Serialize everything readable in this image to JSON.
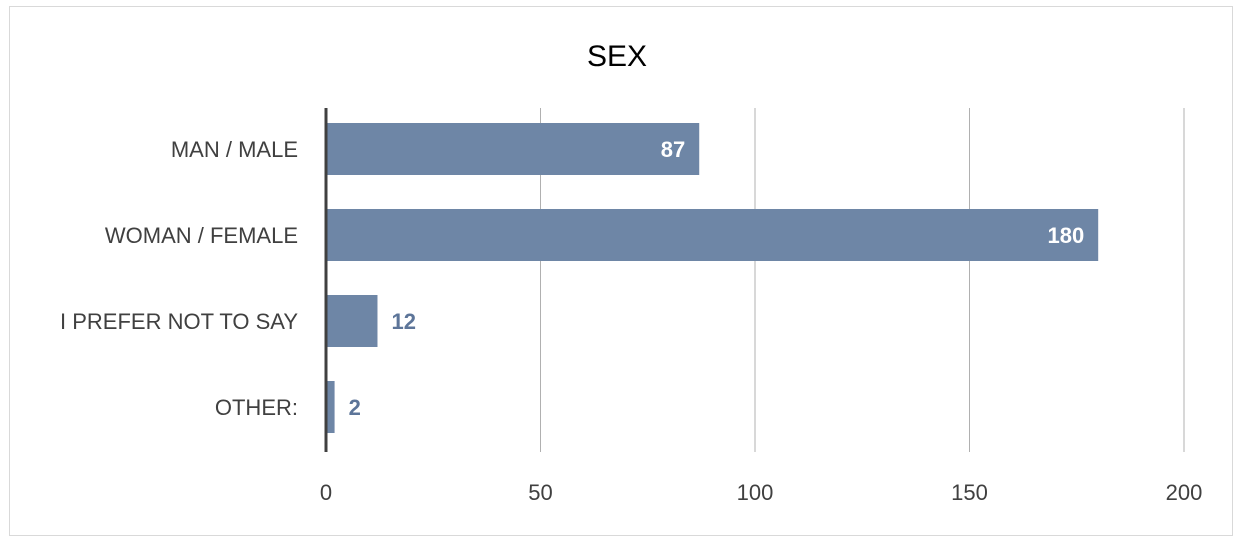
{
  "chart_data": {
    "type": "bar",
    "orientation": "horizontal",
    "title": "SEX",
    "categories": [
      "MAN / MALE",
      "WOMAN / FEMALE",
      "I PREFER NOT TO SAY",
      "OTHER:"
    ],
    "values": [
      87,
      180,
      12,
      2
    ],
    "xlabel": "",
    "ylabel": "",
    "xlim": [
      0,
      200
    ],
    "xticks": [
      "0",
      "50",
      "100",
      "150",
      "200"
    ],
    "grid": true,
    "legend": "none"
  },
  "colors": {
    "bar": "#6e86a6",
    "label_inside": "#ffffff",
    "label_outside": "#5d7599",
    "gridline": "#b0b0b0",
    "axis": "#404040"
  }
}
